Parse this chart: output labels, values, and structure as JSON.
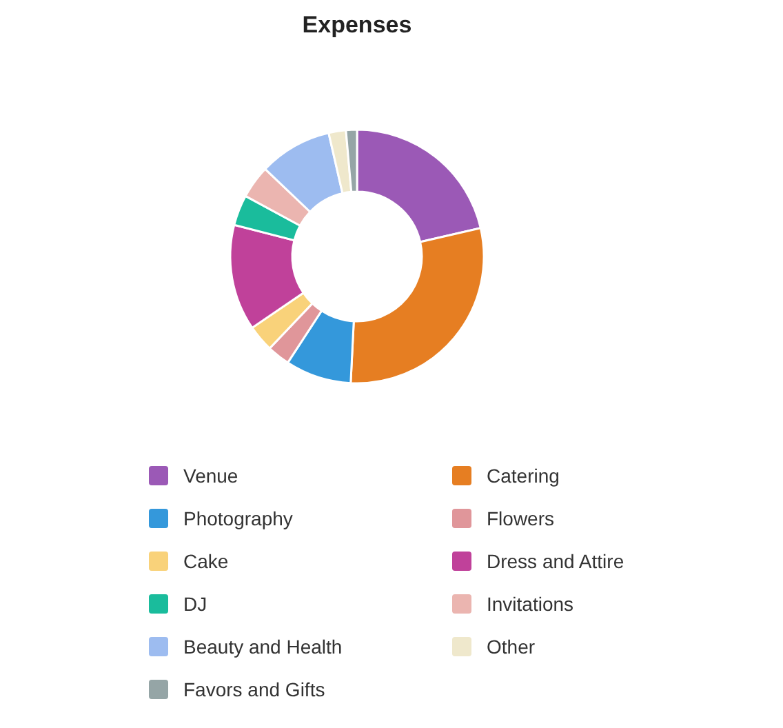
{
  "chart_data": {
    "type": "donut",
    "title": "Expenses",
    "categories": [
      "Venue",
      "Catering",
      "Photography",
      "Flowers",
      "Cake",
      "Dress and Attire",
      "DJ",
      "Invitations",
      "Beauty and Health",
      "Other",
      "Favors and Gifts"
    ],
    "values": [
      21.4,
      29.4,
      8.4,
      2.9,
      3.4,
      13.5,
      3.9,
      4.2,
      9.3,
      2.2,
      1.4
    ],
    "colors": [
      "#9b59b6",
      "#e67e22",
      "#3498db",
      "#e0969a",
      "#f9d27a",
      "#c0419a",
      "#1abc9c",
      "#ebb5b0",
      "#9dbcf0",
      "#efe8cc",
      "#95a5a6"
    ],
    "legend": "bottom"
  }
}
